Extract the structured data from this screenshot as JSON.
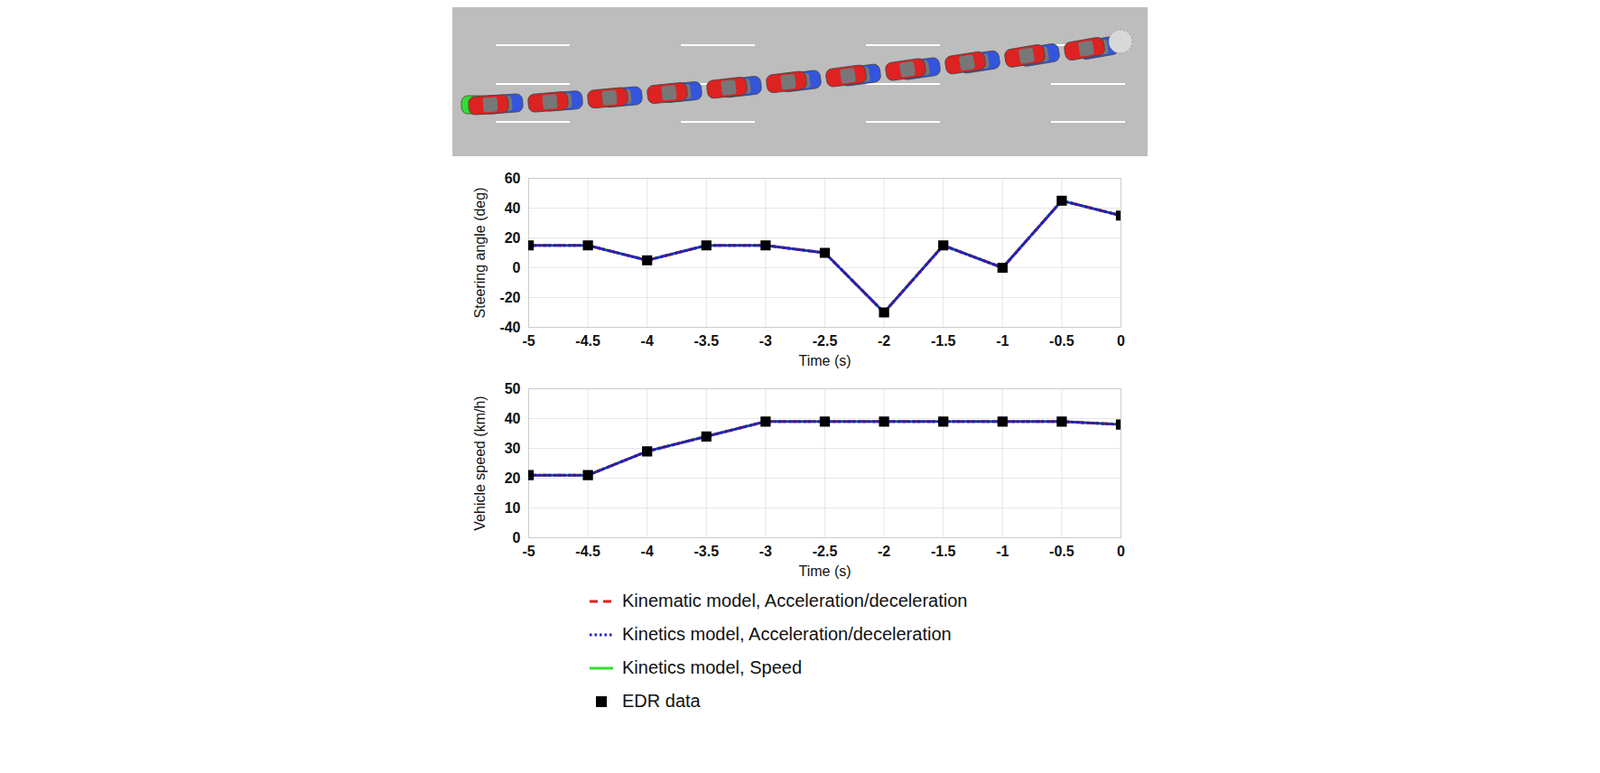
{
  "chart_data": [
    {
      "type": "line",
      "x": [
        -5,
        -4.5,
        -4,
        -3.5,
        -3,
        -2.5,
        -2,
        -1.5,
        -1,
        -0.5,
        0
      ],
      "xlabel": "Time (s)",
      "ylabel": "Steering angle (deg)",
      "xlim": [
        -5,
        0
      ],
      "xticks": [
        -5,
        -4.5,
        -4,
        -3.5,
        -3,
        -2.5,
        -2,
        -1.5,
        -1,
        -0.5,
        0
      ],
      "ylim": [
        -40,
        60
      ],
      "yticks": [
        -40,
        -20,
        0,
        20,
        40,
        60
      ],
      "grid": true,
      "series": [
        {
          "name": "Kinetics model, Speed",
          "color": "#33dd33",
          "line_style": "solid",
          "values": [
            15,
            15,
            5,
            15,
            15,
            10,
            -30,
            15,
            0,
            45,
            35
          ]
        },
        {
          "name": "Kinematic model, Acceleration/deceleration",
          "color": "#e02020",
          "line_style": "dashed",
          "values": [
            15,
            15,
            5,
            15,
            15,
            10,
            -30,
            15,
            0,
            45,
            35
          ]
        },
        {
          "name": "Kinetics model, Acceleration/deceleration",
          "color": "#2020c0",
          "line_style": "dotted",
          "values": [
            15,
            15,
            5,
            15,
            15,
            10,
            -30,
            15,
            0,
            45,
            35
          ]
        },
        {
          "name": "EDR data",
          "type": "scatter",
          "marker": "square",
          "color": "#000000",
          "values": [
            15,
            15,
            5,
            15,
            15,
            10,
            -30,
            15,
            0,
            45,
            35
          ]
        }
      ]
    },
    {
      "type": "line",
      "x": [
        -5,
        -4.5,
        -4,
        -3.5,
        -3,
        -2.5,
        -2,
        -1.5,
        -1,
        -0.5,
        0
      ],
      "xlabel": "Time (s)",
      "ylabel": "Vehicle speed (km/h)",
      "xlim": [
        -5,
        0
      ],
      "xticks": [
        -5,
        -4.5,
        -4,
        -3.5,
        -3,
        -2.5,
        -2,
        -1.5,
        -1,
        -0.5,
        0
      ],
      "ylim": [
        0,
        50
      ],
      "yticks": [
        0,
        10,
        20,
        30,
        40,
        50
      ],
      "grid": true,
      "legend": "bottom",
      "series": [
        {
          "name": "Kinetics model, Speed",
          "color": "#33dd33",
          "line_style": "solid",
          "values": [
            21,
            21,
            29,
            34,
            39,
            39,
            39,
            39,
            39,
            39,
            38
          ]
        },
        {
          "name": "Kinematic model, Acceleration/deceleration",
          "color": "#e02020",
          "line_style": "dashed",
          "values": [
            21,
            21,
            29,
            34,
            39,
            39,
            39,
            39,
            39,
            39,
            38
          ]
        },
        {
          "name": "Kinetics model, Acceleration/deceleration",
          "color": "#2020c0",
          "line_style": "dotted",
          "values": [
            21,
            21,
            29,
            34,
            39,
            39,
            39,
            39,
            39,
            39,
            38
          ]
        },
        {
          "name": "EDR data",
          "type": "scatter",
          "marker": "square",
          "color": "#000000",
          "values": [
            21,
            21,
            29,
            34,
            39,
            39,
            39,
            39,
            39,
            39,
            38
          ]
        }
      ]
    }
  ]
}
